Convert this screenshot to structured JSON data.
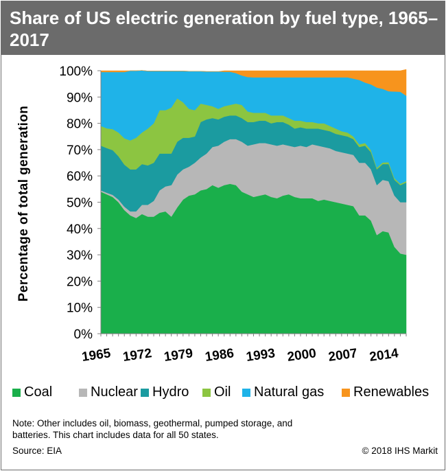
{
  "header": {
    "title": "Share of US electric generation by fuel type, 1965–2017"
  },
  "chart_data": {
    "type": "area",
    "stacked": true,
    "ylabel": "Percentage of total generation",
    "xlabel": "",
    "ylim": [
      0,
      100
    ],
    "y_ticks": [
      "0%",
      "10%",
      "20%",
      "30%",
      "40%",
      "50%",
      "60%",
      "70%",
      "80%",
      "90%",
      "100%"
    ],
    "x_ticks": [
      "1965",
      "1972",
      "1979",
      "1986",
      "1993",
      "2000",
      "2007",
      "2014"
    ],
    "x": [
      1965,
      1966,
      1967,
      1968,
      1969,
      1970,
      1971,
      1972,
      1973,
      1974,
      1975,
      1976,
      1977,
      1978,
      1979,
      1980,
      1981,
      1982,
      1983,
      1984,
      1985,
      1986,
      1987,
      1988,
      1989,
      1990,
      1991,
      1992,
      1993,
      1994,
      1995,
      1996,
      1997,
      1998,
      1999,
      2000,
      2001,
      2002,
      2003,
      2004,
      2005,
      2006,
      2007,
      2008,
      2009,
      2010,
      2011,
      2012,
      2013,
      2014,
      2015,
      2016,
      2017
    ],
    "series": [
      {
        "name": "Coal",
        "color": "#1aaf4b",
        "values": [
          54,
          53,
          52,
          50,
          47,
          45,
          44,
          45.5,
          44.5,
          44.5,
          46,
          46.5,
          44.5,
          48,
          51,
          52.5,
          53,
          54.5,
          55,
          56.5,
          55.5,
          56.5,
          57,
          56.5,
          54,
          53,
          52,
          52.5,
          53,
          52,
          51.5,
          52.5,
          53,
          52,
          51.5,
          51.5,
          51.5,
          50.5,
          51,
          50.5,
          50,
          49.5,
          49,
          48.5,
          45,
          45,
          43,
          37.5,
          39,
          38.5,
          33,
          30.5,
          30
        ]
      },
      {
        "name": "Nuclear",
        "color": "#b7b7b7",
        "values": [
          0.5,
          0.6,
          0.8,
          1,
          1.3,
          1.5,
          2.5,
          3.5,
          4.5,
          6,
          8.5,
          9.5,
          12,
          12.5,
          11.5,
          11,
          12,
          12.5,
          13.5,
          14.5,
          16,
          16.5,
          17,
          17.5,
          19,
          18.5,
          20,
          20,
          19.5,
          20,
          20,
          19.5,
          18.5,
          19,
          20,
          19.5,
          20.5,
          21,
          20,
          20,
          19.5,
          19.5,
          19.5,
          19.5,
          20,
          20,
          19.5,
          19,
          19.5,
          19.5,
          19.5,
          19.5,
          20
        ]
      },
      {
        "name": "Hydro",
        "color": "#1b9ba0",
        "values": [
          17,
          17,
          17,
          16.5,
          16,
          16,
          16,
          15.5,
          15,
          14.5,
          14,
          12.5,
          12,
          12.5,
          12,
          11,
          10,
          13.5,
          13,
          11,
          10,
          9.5,
          9,
          9,
          9,
          9,
          8.5,
          8.5,
          8.5,
          8,
          9,
          8.5,
          8,
          7,
          7,
          7,
          6,
          6.5,
          6.5,
          6.5,
          6.5,
          6.5,
          6.5,
          6,
          6,
          6.5,
          6.5,
          6,
          6,
          6.5,
          6,
          6.5,
          7.5
        ]
      },
      {
        "name": "Oil",
        "color": "#8cc541",
        "values": [
          7.5,
          7.5,
          8,
          9,
          10,
          11,
          12,
          12,
          14,
          15,
          16.5,
          16.5,
          17.5,
          16.5,
          13.5,
          11,
          10,
          7,
          5.5,
          4.5,
          4,
          4,
          4,
          4.5,
          5,
          4,
          3.5,
          3,
          3,
          3,
          2.5,
          2.5,
          2.5,
          3,
          2.5,
          2.5,
          2.5,
          2,
          2.5,
          2,
          2,
          1.5,
          1.5,
          1,
          1,
          1,
          0.8,
          0.6,
          0.6,
          0.7,
          0.6,
          0.5,
          0.5
        ]
      },
      {
        "name": "Natural gas",
        "color": "#1fb3e8",
        "values": [
          20.5,
          21.4,
          21.7,
          23,
          25.2,
          26.5,
          25.5,
          23.6,
          21.9,
          19.9,
          14.9,
          14.9,
          13.9,
          10.4,
          11.9,
          14.3,
          14.8,
          12.3,
          12.7,
          13.2,
          14.2,
          13.1,
          12.6,
          11.6,
          11.2,
          13.1,
          13.5,
          13.5,
          13.5,
          14.5,
          14.5,
          14.5,
          15.5,
          16.5,
          16.5,
          17,
          17,
          17.5,
          17.5,
          18.5,
          19.5,
          20.5,
          21,
          22,
          24.5,
          23,
          25,
          30.5,
          28,
          27,
          33,
          35,
          32.5
        ]
      },
      {
        "name": "Renewables",
        "color": "#f7941d",
        "values": [
          0.5,
          0.5,
          0.5,
          0.5,
          0.5,
          0,
          0,
          0,
          0,
          0,
          0,
          0,
          0,
          0,
          0,
          0,
          0,
          0,
          0,
          0,
          0,
          0.4,
          0.4,
          0.9,
          1.8,
          2.4,
          2.5,
          2.5,
          2.5,
          2.5,
          2.5,
          2.5,
          2.5,
          2.5,
          2.5,
          2.5,
          2.5,
          2.5,
          2.5,
          2.5,
          2.5,
          2.5,
          2.5,
          3,
          3.5,
          4.5,
          5.2,
          6.4,
          6.9,
          7.8,
          7.9,
          8,
          10
        ]
      }
    ],
    "legend_position": "bottom",
    "grid": false
  },
  "legend": {
    "items": [
      {
        "label": "Coal",
        "color": "#1aaf4b"
      },
      {
        "label": "Nuclear",
        "color": "#b7b7b7"
      },
      {
        "label": "Hydro",
        "color": "#1b9ba0"
      },
      {
        "label": "Oil",
        "color": "#8cc541"
      },
      {
        "label": "Natural gas",
        "color": "#1fb3e8"
      },
      {
        "label": "Renewables",
        "color": "#f7941d"
      }
    ]
  },
  "footer": {
    "note": "Note: Other includes oil, biomass, geothermal, pumped storage, and batteries. This chart includes data for all 50 states.",
    "source": "Source: EIA",
    "copyright": "© 2018 IHS Markit"
  }
}
